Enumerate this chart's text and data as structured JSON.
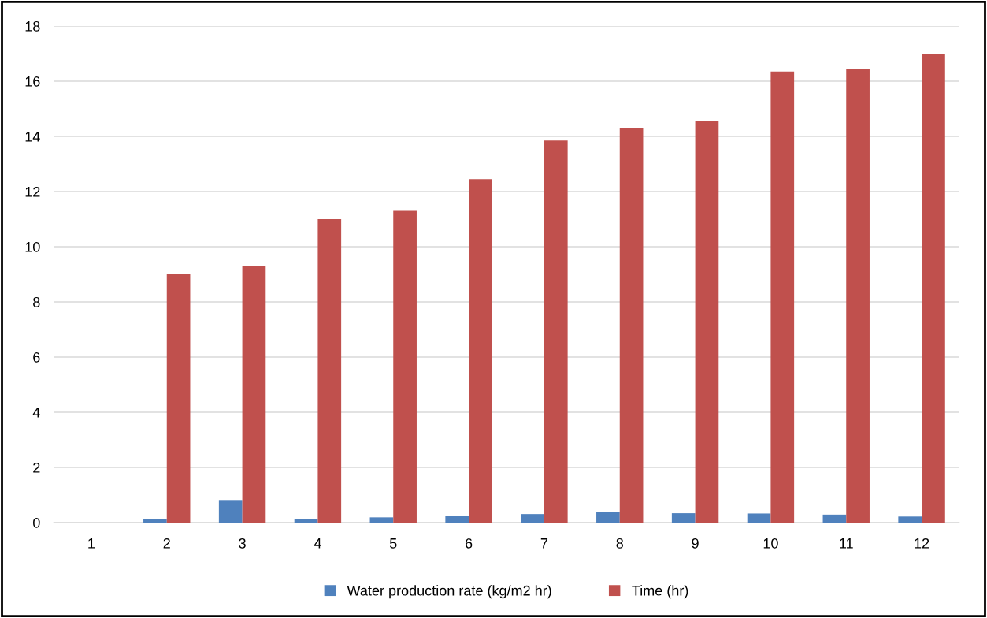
{
  "chart_data": {
    "type": "bar",
    "categories": [
      "1",
      "2",
      "3",
      "4",
      "5",
      "6",
      "7",
      "8",
      "9",
      "10",
      "11",
      "12"
    ],
    "series": [
      {
        "name": "Water production rate (kg/m2 hr)",
        "color": "#4f81bd",
        "values": [
          0,
          0.14,
          0.82,
          0.12,
          0.19,
          0.25,
          0.31,
          0.39,
          0.34,
          0.33,
          0.29,
          0.22
        ]
      },
      {
        "name": "Time (hr)",
        "color": "#c0504d",
        "values": [
          0,
          9,
          9.3,
          11,
          11.3,
          12.45,
          13.85,
          14.3,
          14.55,
          16.35,
          16.45,
          17
        ]
      }
    ],
    "ylim": [
      0,
      18
    ],
    "yticks": [
      0,
      2,
      4,
      6,
      8,
      10,
      12,
      14,
      16,
      18
    ],
    "grid": "y",
    "legend": "bottom"
  }
}
